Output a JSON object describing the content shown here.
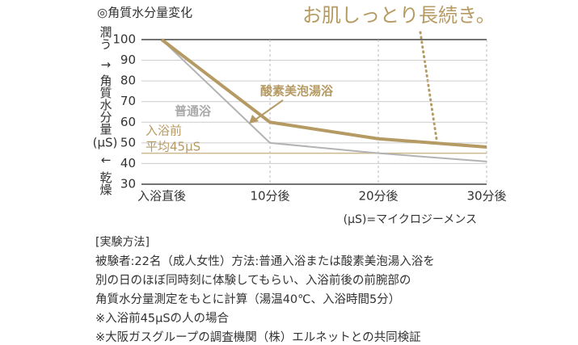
{
  "chart_data": {
    "type": "line",
    "title": "◎角質水分量変化",
    "headline": "お肌しっとり長続き。",
    "y_label": [
      "潤う",
      "↑",
      "角質水分量",
      "(μS)",
      "↓",
      "乾燥"
    ],
    "categories": [
      "入浴直後",
      "10分後",
      "20分後",
      "30分後"
    ],
    "series": [
      {
        "name": "酸素美泡湯浴",
        "color": "#b59a63",
        "values": [
          100,
          60,
          52,
          48
        ]
      },
      {
        "name": "普通浴",
        "color": "#b3b3b3",
        "values": [
          100,
          50,
          45,
          41
        ]
      }
    ],
    "reference_line": {
      "value": 45,
      "label": [
        "入浴前",
        "平均45μS"
      ],
      "color": "#cdb98f"
    },
    "ylim": [
      30,
      100
    ],
    "yticks": [
      30,
      40,
      50,
      60,
      70,
      80,
      90,
      100
    ],
    "unit_note": "(μS)=マイクロジーメンス"
  },
  "notes": {
    "heading": "[実験方法]",
    "lines": [
      "被験者:22名（成人女性）方法:普通入浴または酸素美泡湯入浴を",
      "別の日のほぼ同時刻に体験してもらい、入浴前後の前腕部の",
      "角質水分量測定をもとに計算（湯温40℃、入浴時間5分）",
      "※入浴前45μSの人の場合",
      "※大阪ガスグループの調査機関（株）エルネットとの共同検証"
    ]
  }
}
